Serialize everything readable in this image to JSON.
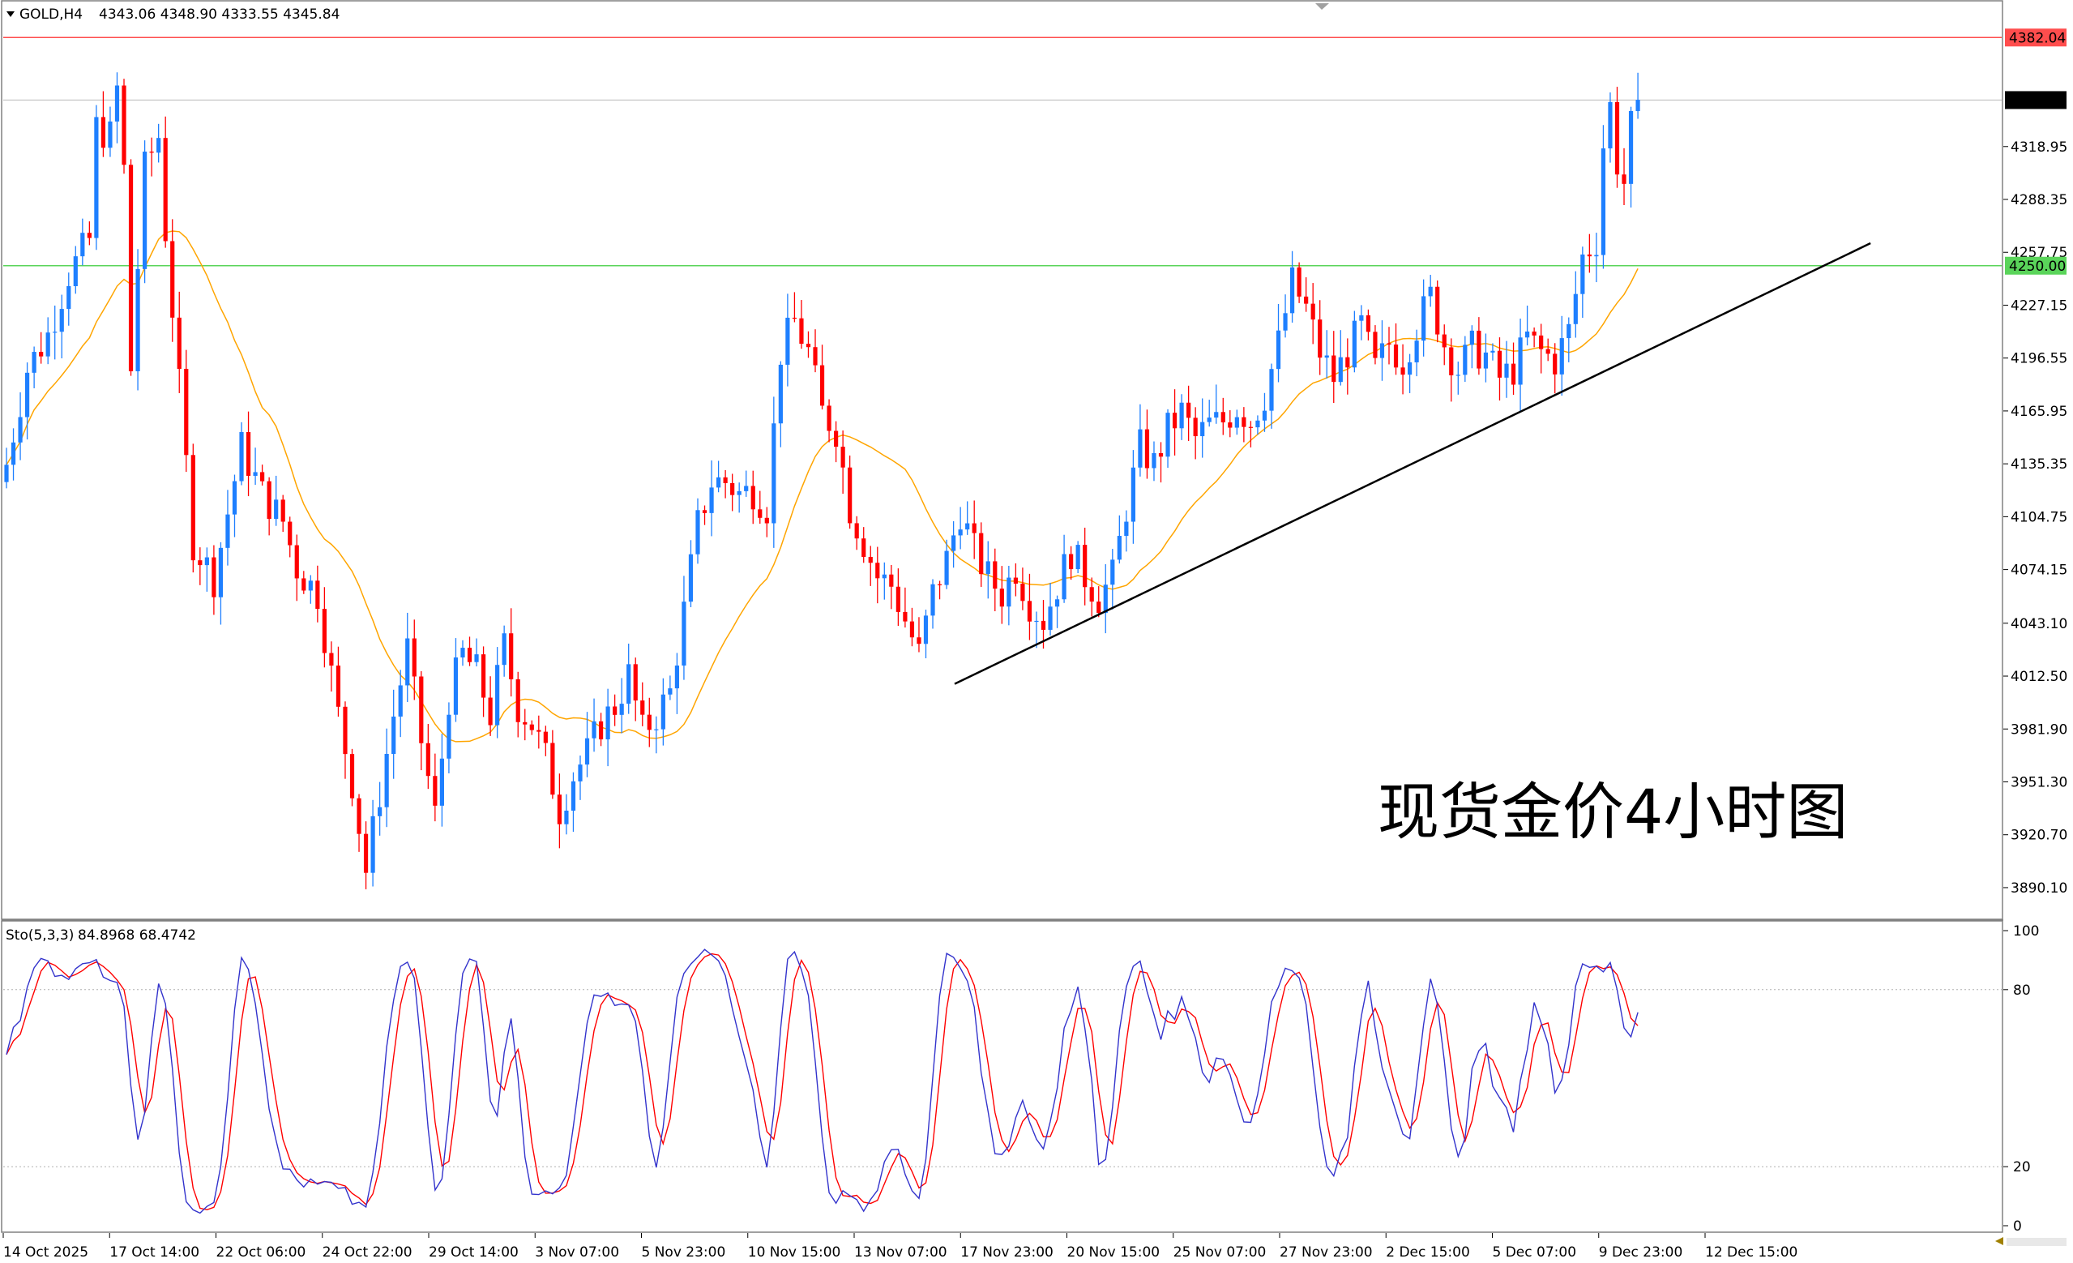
{
  "header": {
    "symbol": "GOLD,H4",
    "ohlc": "4343.06 4348.90 4333.55 4345.84"
  },
  "annotation": "现货金价4小时图",
  "colors": {
    "bull": "#1e7fff",
    "bear": "#ff0000",
    "ma": "#ffa500",
    "resistance_line": "#ff4d4d",
    "support_line": "#5ad45a",
    "current_line": "#c0c0c0",
    "trendline": "#000000",
    "stoch_main": "#3333cc",
    "stoch_signal": "#ff0000"
  },
  "chart_data": [
    {
      "type": "candlestick",
      "title": "GOLD,H4",
      "ylim": [
        3876,
        4400
      ],
      "yticks": [
        "4318.95",
        "4288.35",
        "4257.75",
        "4227.15",
        "4196.55",
        "4165.95",
        "4135.35",
        "4104.75",
        "4074.15",
        "4043.10",
        "4012.50",
        "3981.90",
        "3951.30",
        "3920.70",
        "3890.10"
      ],
      "price_labels": {
        "resistance": "4382.04",
        "current": "4345.84",
        "support": "4250.00"
      },
      "levels": {
        "resistance": 4382.04,
        "current": 4345.84,
        "support": 4250.0
      },
      "xlabels": [
        "14 Oct 2025",
        "17 Oct 14:00",
        "22 Oct 06:00",
        "24 Oct 22:00",
        "29 Oct 14:00",
        "3 Nov 07:00",
        "5 Nov 23:00",
        "10 Nov 15:00",
        "13 Nov 07:00",
        "17 Nov 23:00",
        "20 Nov 15:00",
        "25 Nov 07:00",
        "27 Nov 23:00",
        "2 Dec 15:00",
        "5 Dec 07:00",
        "9 Dec 23:00",
        "12 Dec 15:00"
      ],
      "trendline": {
        "from": [
          0,
          4008
        ],
        "to": [
          238,
          4263
        ]
      },
      "anchors": [
        [
          0,
          4135
        ],
        [
          3,
          4190
        ],
        [
          6,
          4210
        ],
        [
          9,
          4245
        ],
        [
          12,
          4265
        ],
        [
          13,
          4330
        ],
        [
          15,
          4325
        ],
        [
          16,
          4352
        ],
        [
          17,
          4305
        ],
        [
          18,
          4190
        ],
        [
          19,
          4250
        ],
        [
          20,
          4306
        ],
        [
          22,
          4325
        ],
        [
          23,
          4270
        ],
        [
          25,
          4180
        ],
        [
          27,
          4090
        ],
        [
          30,
          4069
        ],
        [
          34,
          4145
        ],
        [
          37,
          4118
        ],
        [
          40,
          4102
        ],
        [
          42,
          4075
        ],
        [
          45,
          4060
        ],
        [
          48,
          3990
        ],
        [
          50,
          3951
        ],
        [
          52,
          3900
        ],
        [
          54,
          3945
        ],
        [
          56,
          3990
        ],
        [
          58,
          4028
        ],
        [
          60,
          3975
        ],
        [
          62,
          3932
        ],
        [
          64,
          4000
        ],
        [
          66,
          4025
        ],
        [
          68,
          4015
        ],
        [
          70,
          3990
        ],
        [
          72,
          4030
        ],
        [
          74,
          3995
        ],
        [
          76,
          3985
        ],
        [
          78,
          3965
        ],
        [
          80,
          3935
        ],
        [
          82,
          3955
        ],
        [
          84,
          3968
        ],
        [
          86,
          3985
        ],
        [
          88,
          3995
        ],
        [
          90,
          4013
        ],
        [
          92,
          3980
        ],
        [
          94,
          3990
        ],
        [
          96,
          4003
        ],
        [
          98,
          4050
        ],
        [
          100,
          4100
        ],
        [
          102,
          4125
        ],
        [
          104,
          4125
        ],
        [
          106,
          4118
        ],
        [
          108,
          4120
        ],
        [
          110,
          4110
        ],
        [
          112,
          4200
        ],
        [
          114,
          4218
        ],
        [
          116,
          4200
        ],
        [
          118,
          4165
        ],
        [
          120,
          4155
        ],
        [
          122,
          4110
        ],
        [
          124,
          4090
        ],
        [
          126,
          4070
        ],
        [
          128,
          4065
        ],
        [
          130,
          4045
        ],
        [
          132,
          4025
        ],
        [
          134,
          4060
        ],
        [
          136,
          4080
        ],
        [
          138,
          4108
        ],
        [
          140,
          4085
        ],
        [
          142,
          4070
        ],
        [
          144,
          4060
        ],
        [
          146,
          4075
        ],
        [
          148,
          4055
        ],
        [
          150,
          4045
        ],
        [
          152,
          4065
        ],
        [
          154,
          4085
        ],
        [
          156,
          4070
        ],
        [
          158,
          4058
        ],
        [
          160,
          4070
        ],
        [
          162,
          4110
        ],
        [
          164,
          4145
        ],
        [
          166,
          4135
        ],
        [
          168,
          4155
        ],
        [
          170,
          4165
        ],
        [
          172,
          4150
        ],
        [
          174,
          4158
        ],
        [
          176,
          4160
        ],
        [
          178,
          4168
        ],
        [
          180,
          4160
        ],
        [
          182,
          4175
        ],
        [
          184,
          4205
        ],
        [
          186,
          4240
        ],
        [
          188,
          4225
        ],
        [
          190,
          4200
        ],
        [
          192,
          4185
        ],
        [
          194,
          4200
        ],
        [
          196,
          4215
        ],
        [
          198,
          4190
        ],
        [
          200,
          4205
        ],
        [
          202,
          4195
        ],
        [
          204,
          4215
        ],
        [
          206,
          4232
        ],
        [
          208,
          4205
        ],
        [
          210,
          4190
        ],
        [
          212,
          4202
        ],
        [
          214,
          4198
        ],
        [
          216,
          4185
        ],
        [
          218,
          4190
        ],
        [
          220,
          4208
        ],
        [
          222,
          4200
        ],
        [
          224,
          4195
        ],
        [
          226,
          4212
        ],
        [
          228,
          4255
        ],
        [
          230,
          4265
        ],
        [
          231,
          4320
        ],
        [
          232,
          4342
        ],
        [
          233,
          4310
        ],
        [
          234,
          4298
        ],
        [
          235,
          4330
        ],
        [
          236,
          4346
        ]
      ],
      "ma_period": 20
    },
    {
      "type": "line",
      "title": "Sto(5,3,3)",
      "values_label": "84.8968 68.4742",
      "ylim": [
        0,
        100
      ],
      "yticks": [
        "100",
        "80",
        "20",
        "0"
      ],
      "series": [
        {
          "name": "Sto(5,3,3)",
          "values": []
        }
      ]
    }
  ]
}
